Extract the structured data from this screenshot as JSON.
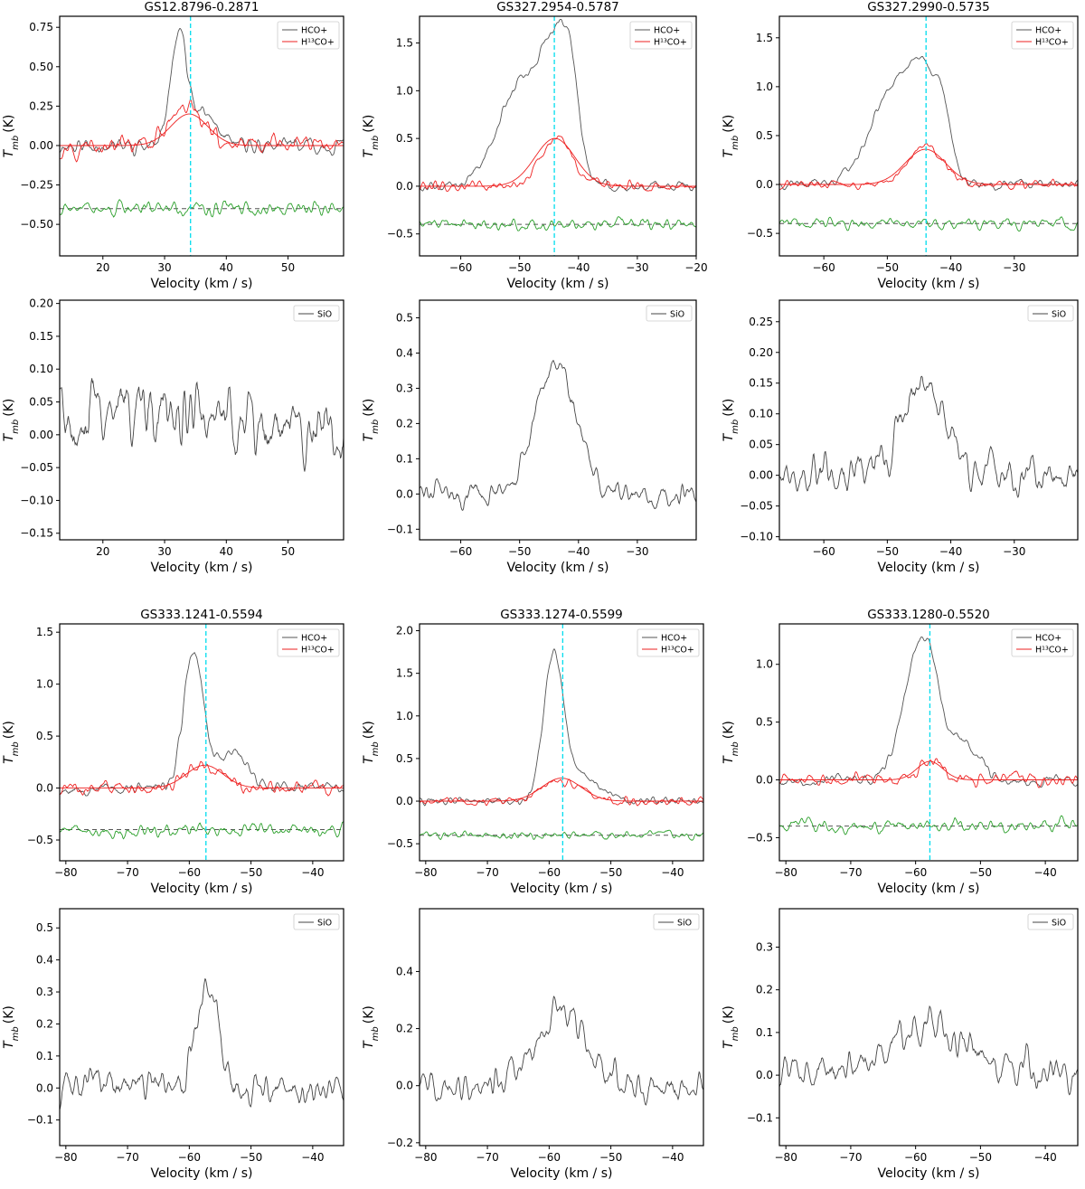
{
  "colors": {
    "hco": "#555555",
    "h13co": "#ee2222",
    "residual": "#2ca02c",
    "vlsr": "#00ddee",
    "baseline": "#555555",
    "sio": "#444444"
  },
  "chart_data": [
    {
      "type": "line",
      "name": "panel-gs12-hco",
      "title": "GS12.8796-0.2871",
      "xlabel": "Velocity (km / s)",
      "ylabel": "Tmb (K)",
      "xlim": [
        13,
        59
      ],
      "ylim": [
        -0.7,
        0.82
      ],
      "xticks": [
        20,
        30,
        40,
        50
      ],
      "yticks": [
        -0.5,
        -0.25,
        0.0,
        0.25,
        0.5,
        0.75
      ],
      "yticklabels": [
        "−0.50",
        "−0.25",
        "0.00",
        "0.25",
        "0.50",
        "0.75"
      ],
      "vlsr": 34.2,
      "baseline": -0.4,
      "legend": [
        "HCO+",
        "H13CO+"
      ],
      "hco": {
        "peaks": [
          {
            "c": 32.3,
            "a": 0.75,
            "w": 1.3
          },
          {
            "c": 36.5,
            "a": 0.2,
            "w": 1.8
          }
        ],
        "noise": 0.05
      },
      "h13co": {
        "peaks": [
          {
            "c": 33.6,
            "a": 0.24,
            "w": 2.6
          }
        ],
        "noise": 0.06
      },
      "fit": {
        "c": 34.0,
        "a": 0.2,
        "w": 3.0
      },
      "residual_noise": 0.05
    },
    {
      "type": "line",
      "name": "panel-gs327a-hco",
      "title": "GS327.2954-0.5787",
      "xlabel": "Velocity (km / s)",
      "ylabel": "Tmb (K)",
      "xlim": [
        -67,
        -20
      ],
      "ylim": [
        -0.73,
        1.78
      ],
      "xticks": [
        -60,
        -50,
        -40,
        -30,
        -20
      ],
      "yticks": [
        -0.5,
        0.0,
        0.5,
        1.0,
        1.5
      ],
      "yticklabels": [
        "−0.5",
        "0.0",
        "0.5",
        "1.0",
        "1.5"
      ],
      "vlsr": -44.1,
      "baseline": -0.4,
      "legend": [
        "HCO+",
        "H13CO+"
      ],
      "hco": {
        "peaks": [
          {
            "c": -49.5,
            "a": 1.1,
            "w": 4.0
          },
          {
            "c": -44.5,
            "a": 0.95,
            "w": 2.0
          },
          {
            "c": -41.5,
            "a": 1.1,
            "w": 1.6
          }
        ],
        "noise": 0.05
      },
      "h13co": {
        "peaks": [
          {
            "c": -43.8,
            "a": 0.5,
            "w": 2.8
          }
        ],
        "noise": 0.06
      },
      "fit": {
        "c": -44.0,
        "a": 0.5,
        "w": 3.4
      },
      "residual_noise": 0.06
    },
    {
      "type": "line",
      "name": "panel-gs327b-hco",
      "title": "GS327.2990-0.5735",
      "xlabel": "Velocity (km / s)",
      "ylabel": "Tmb (K)",
      "xlim": [
        -67,
        -20
      ],
      "ylim": [
        -0.73,
        1.72
      ],
      "xticks": [
        -60,
        -50,
        -40,
        -30
      ],
      "yticks": [
        -0.5,
        0.0,
        0.5,
        1.0,
        1.5
      ],
      "yticklabels": [
        "−0.5",
        "0.0",
        "0.5",
        "1.0",
        "1.5"
      ],
      "vlsr": -43.9,
      "baseline": -0.4,
      "legend": [
        "HCO+",
        "H13CO+"
      ],
      "hco": {
        "peaks": [
          {
            "c": -48.5,
            "a": 1.05,
            "w": 3.8
          },
          {
            "c": -44.8,
            "a": 0.6,
            "w": 1.6
          },
          {
            "c": -41.5,
            "a": 0.75,
            "w": 1.5
          }
        ],
        "noise": 0.05
      },
      "h13co": {
        "peaks": [
          {
            "c": -43.9,
            "a": 0.4,
            "w": 2.6
          }
        ],
        "noise": 0.05
      },
      "fit": {
        "c": -44.0,
        "a": 0.36,
        "w": 3.2
      },
      "residual_noise": 0.06
    },
    {
      "type": "line",
      "name": "panel-gs12-sio",
      "xlabel": "Velocity (km / s)",
      "ylabel": "Tmb (K)",
      "xlim": [
        13,
        59
      ],
      "ylim": [
        -0.16,
        0.205
      ],
      "xticks": [
        20,
        30,
        40,
        50
      ],
      "yticks": [
        -0.15,
        -0.1,
        -0.05,
        0.0,
        0.05,
        0.1,
        0.15,
        0.2
      ],
      "yticklabels": [
        "−0.15",
        "−0.10",
        "−0.05",
        "0.00",
        "0.05",
        "0.10",
        "0.15",
        "0.20"
      ],
      "legend": [
        "SiO"
      ],
      "sio": {
        "peaks": [
          {
            "c": 30,
            "a": 0.04,
            "w": 10
          }
        ],
        "noise": 0.055
      }
    },
    {
      "type": "line",
      "name": "panel-gs327a-sio",
      "xlabel": "Velocity (km / s)",
      "ylabel": "Tmb (K)",
      "xlim": [
        -67,
        -20
      ],
      "ylim": [
        -0.13,
        0.55
      ],
      "xticks": [
        -60,
        -50,
        -40,
        -30
      ],
      "yticks": [
        -0.1,
        0.0,
        0.1,
        0.2,
        0.3,
        0.4,
        0.5
      ],
      "yticklabels": [
        "−0.1",
        "0.0",
        "0.1",
        "0.2",
        "0.3",
        "0.4",
        "0.5"
      ],
      "legend": [
        "SiO"
      ],
      "sio": {
        "peaks": [
          {
            "c": -44,
            "a": 0.37,
            "w": 3.5
          }
        ],
        "noise": 0.035
      }
    },
    {
      "type": "line",
      "name": "panel-gs327b-sio",
      "xlabel": "Velocity (km / s)",
      "ylabel": "Tmb (K)",
      "xlim": [
        -67,
        -20
      ],
      "ylim": [
        -0.105,
        0.285
      ],
      "xticks": [
        -60,
        -50,
        -40,
        -30
      ],
      "yticks": [
        -0.1,
        -0.05,
        0.0,
        0.05,
        0.1,
        0.15,
        0.2,
        0.25
      ],
      "yticklabels": [
        "−0.10",
        "−0.05",
        "0.00",
        "0.05",
        "0.10",
        "0.15",
        "0.20",
        "0.25"
      ],
      "legend": [
        "SiO"
      ],
      "sio": {
        "peaks": [
          {
            "c": -44,
            "a": 0.16,
            "w": 3.5
          }
        ],
        "noise": 0.035
      }
    },
    {
      "type": "line",
      "name": "panel-gs333a-hco",
      "title": "GS333.1241-0.5594",
      "xlabel": "Velocity (km / s)",
      "ylabel": "Tmb (K)",
      "xlim": [
        -81,
        -35
      ],
      "ylim": [
        -0.7,
        1.58
      ],
      "xticks": [
        -80,
        -70,
        -60,
        -50,
        -40
      ],
      "yticks": [
        -0.5,
        0.0,
        0.5,
        1.0,
        1.5
      ],
      "yticklabels": [
        "−0.5",
        "0.0",
        "0.5",
        "1.0",
        "1.5"
      ],
      "vlsr": -57.3,
      "baseline": -0.4,
      "legend": [
        "HCO+",
        "H13CO+"
      ],
      "hco": {
        "peaks": [
          {
            "c": -59.3,
            "a": 1.3,
            "w": 1.6
          },
          {
            "c": -53,
            "a": 0.35,
            "w": 2.5
          }
        ],
        "noise": 0.06
      },
      "h13co": {
        "peaks": [
          {
            "c": -57.5,
            "a": 0.2,
            "w": 3
          }
        ],
        "noise": 0.07
      },
      "fit": {
        "c": -57.5,
        "a": 0.22,
        "w": 3.0
      },
      "residual_noise": 0.07
    },
    {
      "type": "line",
      "name": "panel-gs333b-hco",
      "title": "GS333.1274-0.5599",
      "xlabel": "Velocity (km / s)",
      "ylabel": "Tmb (K)",
      "xlim": [
        -81,
        -35
      ],
      "ylim": [
        -0.7,
        2.08
      ],
      "xticks": [
        -80,
        -70,
        -60,
        -50,
        -40
      ],
      "yticks": [
        -0.5,
        0.0,
        0.5,
        1.0,
        1.5,
        2.0
      ],
      "yticklabels": [
        "−0.5",
        "0.0",
        "0.5",
        "1.0",
        "1.5",
        "2.0"
      ],
      "vlsr": -57.8,
      "baseline": -0.4,
      "legend": [
        "HCO+",
        "H13CO+"
      ],
      "hco": {
        "peaks": [
          {
            "c": -59.3,
            "a": 1.65,
            "w": 1.6
          },
          {
            "c": -55,
            "a": 0.3,
            "w": 3
          }
        ],
        "noise": 0.05
      },
      "h13co": {
        "peaks": [
          {
            "c": -58,
            "a": 0.25,
            "w": 3.2
          }
        ],
        "noise": 0.05
      },
      "fit": {
        "c": -58.0,
        "a": 0.27,
        "w": 3.2
      },
      "residual_noise": 0.05
    },
    {
      "type": "line",
      "name": "panel-gs333c-hco",
      "title": "GS333.1280-0.5520",
      "xlabel": "Velocity (km / s)",
      "ylabel": "Tmb (K)",
      "xlim": [
        -81,
        -35
      ],
      "ylim": [
        -0.7,
        1.35
      ],
      "xticks": [
        -80,
        -70,
        -60,
        -50,
        -40
      ],
      "yticks": [
        -0.5,
        0.0,
        0.5,
        1.0
      ],
      "yticklabels": [
        "−0.5",
        "0.0",
        "0.5",
        "1.0"
      ],
      "vlsr": -57.8,
      "baseline": -0.4,
      "legend": [
        "HCO+",
        "H13CO+"
      ],
      "hco": {
        "peaks": [
          {
            "c": -60,
            "a": 1.0,
            "w": 2.2
          },
          {
            "c": -57.5,
            "a": 0.5,
            "w": 1.5
          },
          {
            "c": -53,
            "a": 0.35,
            "w": 2.5
          }
        ],
        "noise": 0.05
      },
      "h13co": {
        "peaks": [
          {
            "c": -57.8,
            "a": 0.18,
            "w": 1.8
          }
        ],
        "noise": 0.06
      },
      "fit": {
        "c": -57.8,
        "a": 0.16,
        "w": 2.0
      },
      "residual_noise": 0.06
    },
    {
      "type": "line",
      "name": "panel-gs333a-sio",
      "xlabel": "Velocity (km / s)",
      "ylabel": "Tmb (K)",
      "xlim": [
        -81,
        -35
      ],
      "ylim": [
        -0.18,
        0.56
      ],
      "xticks": [
        -80,
        -70,
        -60,
        -50,
        -40
      ],
      "yticks": [
        -0.1,
        0.0,
        0.1,
        0.2,
        0.3,
        0.4,
        0.5
      ],
      "yticklabels": [
        "−0.1",
        "0.0",
        "0.1",
        "0.2",
        "0.3",
        "0.4",
        "0.5"
      ],
      "legend": [
        "SiO"
      ],
      "sio": {
        "peaks": [
          {
            "c": -57,
            "a": 0.32,
            "w": 1.8
          }
        ],
        "noise": 0.055
      }
    },
    {
      "type": "line",
      "name": "panel-gs333b-sio",
      "xlabel": "Velocity (km / s)",
      "ylabel": "Tmb (K)",
      "xlim": [
        -81,
        -35
      ],
      "ylim": [
        -0.21,
        0.62
      ],
      "xticks": [
        -80,
        -70,
        -60,
        -50,
        -40
      ],
      "yticks": [
        -0.2,
        0.0,
        0.2,
        0.4
      ],
      "yticklabels": [
        "−0.2",
        "0.0",
        "0.2",
        "0.4"
      ],
      "legend": [
        "SiO"
      ],
      "sio": {
        "peaks": [
          {
            "c": -58,
            "a": 0.25,
            "w": 4.5
          }
        ],
        "noise": 0.06
      }
    },
    {
      "type": "line",
      "name": "panel-gs333c-sio",
      "xlabel": "Velocity (km / s)",
      "ylabel": "Tmb (K)",
      "xlim": [
        -81,
        -35
      ],
      "ylim": [
        -0.165,
        0.39
      ],
      "xticks": [
        -80,
        -70,
        -60,
        -50,
        -40
      ],
      "yticks": [
        -0.1,
        0.0,
        0.1,
        0.2,
        0.3
      ],
      "yticklabels": [
        "−0.1",
        "0.0",
        "0.1",
        "0.2",
        "0.3"
      ],
      "legend": [
        "SiO"
      ],
      "sio": {
        "peaks": [
          {
            "c": -58,
            "a": 0.12,
            "w": 6
          }
        ],
        "noise": 0.045
      }
    }
  ]
}
